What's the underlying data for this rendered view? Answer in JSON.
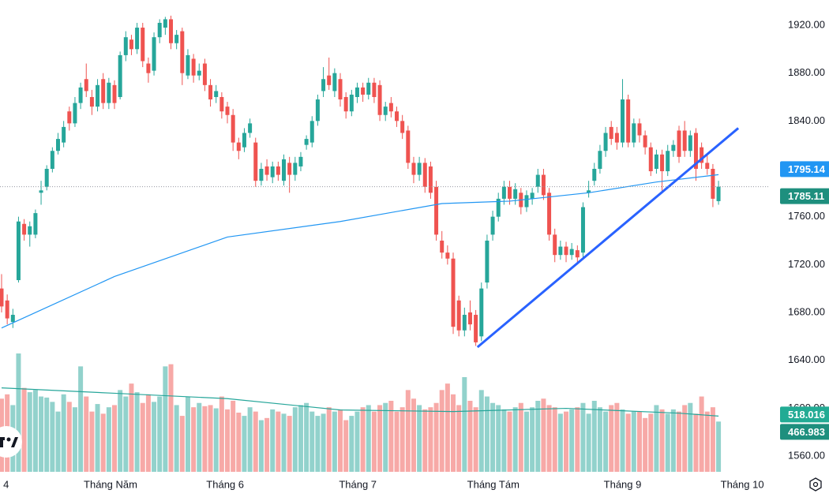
{
  "chart_data": {
    "type": "candlestick",
    "up_color": "#26a69a",
    "down_color": "#ef5350",
    "xlim": [
      -0.28,
      136.08
    ],
    "ylim": [
      1546.8,
      1941.1
    ],
    "yticks": [
      {
        "value": 1560,
        "label": "1560.00"
      },
      {
        "value": 1600,
        "label": "1600.00"
      },
      {
        "value": 1640,
        "label": "1640.00"
      },
      {
        "value": 1680,
        "label": "1680.00"
      },
      {
        "value": 1720,
        "label": "1720.00"
      },
      {
        "value": 1760,
        "label": "1760.00"
      },
      {
        "value": 1800,
        "label": "1800.00"
      },
      {
        "value": 1840,
        "label": "1840.00"
      },
      {
        "value": 1880,
        "label": "1880.00"
      },
      {
        "value": 1920,
        "label": "1920.00"
      }
    ],
    "xticks": [
      {
        "value": 0.8,
        "label": "4"
      },
      {
        "value": 19.3,
        "label": "Tháng Năm"
      },
      {
        "value": 39.6,
        "label": "Tháng 6"
      },
      {
        "value": 63.1,
        "label": "Tháng 7"
      },
      {
        "value": 87.1,
        "label": "Tháng Tám"
      },
      {
        "value": 110,
        "label": "Tháng 9"
      },
      {
        "value": 131.2,
        "label": "Tháng 10"
      }
    ],
    "candles": [
      [
        1700,
        1712,
        1680,
        1685
      ],
      [
        1690,
        1695,
        1670,
        1675
      ],
      [
        1672,
        1683,
        1667,
        1678
      ],
      [
        1707,
        1760,
        1705,
        1756
      ],
      [
        1754,
        1758,
        1740,
        1745
      ],
      [
        1745,
        1756,
        1735,
        1752
      ],
      [
        1745,
        1766,
        1742,
        1763
      ],
      [
        1780,
        1790,
        1770,
        1782
      ],
      [
        1785,
        1803,
        1782,
        1800
      ],
      [
        1800,
        1818,
        1797,
        1815
      ],
      [
        1815,
        1830,
        1812,
        1825
      ],
      [
        1822,
        1840,
        1818,
        1835
      ],
      [
        1848,
        1852,
        1832,
        1838
      ],
      [
        1838,
        1860,
        1835,
        1855
      ],
      [
        1855,
        1872,
        1850,
        1868
      ],
      [
        1875,
        1888,
        1860,
        1865
      ],
      [
        1860,
        1866,
        1845,
        1852
      ],
      [
        1852,
        1875,
        1848,
        1870
      ],
      [
        1875,
        1880,
        1850,
        1855
      ],
      [
        1855,
        1876,
        1850,
        1872
      ],
      [
        1870,
        1874,
        1850,
        1855
      ],
      [
        1860,
        1898,
        1858,
        1895
      ],
      [
        1895,
        1915,
        1890,
        1910
      ],
      [
        1908,
        1912,
        1895,
        1900
      ],
      [
        1900,
        1922,
        1896,
        1918
      ],
      [
        1918,
        1922,
        1885,
        1890
      ],
      [
        1888,
        1893,
        1872,
        1880
      ],
      [
        1882,
        1914,
        1878,
        1910
      ],
      [
        1910,
        1925,
        1905,
        1922
      ],
      [
        1918,
        1927,
        1912,
        1925
      ],
      [
        1925,
        1928,
        1900,
        1905
      ],
      [
        1905,
        1916,
        1900,
        1912
      ],
      [
        1915,
        1918,
        1870,
        1880
      ],
      [
        1878,
        1900,
        1875,
        1895
      ],
      [
        1892,
        1896,
        1872,
        1878
      ],
      [
        1878,
        1888,
        1874,
        1882
      ],
      [
        1888,
        1892,
        1865,
        1870
      ],
      [
        1870,
        1875,
        1852,
        1858
      ],
      [
        1860,
        1870,
        1855,
        1865
      ],
      [
        1860,
        1864,
        1842,
        1848
      ],
      [
        1852,
        1856,
        1838,
        1845
      ],
      [
        1845,
        1850,
        1815,
        1822
      ],
      [
        1822,
        1826,
        1808,
        1815
      ],
      [
        1818,
        1834,
        1814,
        1830
      ],
      [
        1830,
        1842,
        1826,
        1838
      ],
      [
        1822,
        1826,
        1785,
        1790
      ],
      [
        1790,
        1805,
        1786,
        1800
      ],
      [
        1802,
        1808,
        1790,
        1795
      ],
      [
        1793,
        1806,
        1788,
        1802
      ],
      [
        1802,
        1806,
        1790,
        1795
      ],
      [
        1790,
        1812,
        1786,
        1808
      ],
      [
        1805,
        1810,
        1780,
        1795
      ],
      [
        1795,
        1810,
        1790,
        1805
      ],
      [
        1802,
        1814,
        1798,
        1810
      ],
      [
        1820,
        1828,
        1816,
        1825
      ],
      [
        1822,
        1844,
        1818,
        1840
      ],
      [
        1840,
        1862,
        1836,
        1858
      ],
      [
        1865,
        1885,
        1860,
        1875
      ],
      [
        1878,
        1893,
        1866,
        1870
      ],
      [
        1865,
        1884,
        1860,
        1880
      ],
      [
        1875,
        1880,
        1852,
        1858
      ],
      [
        1860,
        1864,
        1842,
        1848
      ],
      [
        1848,
        1866,
        1844,
        1862
      ],
      [
        1860,
        1872,
        1855,
        1868
      ],
      [
        1868,
        1872,
        1856,
        1862
      ],
      [
        1862,
        1876,
        1858,
        1872
      ],
      [
        1872,
        1876,
        1855,
        1860
      ],
      [
        1870,
        1874,
        1840,
        1845
      ],
      [
        1845,
        1856,
        1840,
        1852
      ],
      [
        1855,
        1860,
        1843,
        1848
      ],
      [
        1848,
        1852,
        1835,
        1840
      ],
      [
        1840,
        1845,
        1825,
        1830
      ],
      [
        1832,
        1836,
        1800,
        1805
      ],
      [
        1805,
        1810,
        1788,
        1795
      ],
      [
        1795,
        1810,
        1790,
        1805
      ],
      [
        1805,
        1809,
        1780,
        1785
      ],
      [
        1802,
        1806,
        1775,
        1780
      ],
      [
        1785,
        1790,
        1740,
        1745
      ],
      [
        1740,
        1748,
        1725,
        1730
      ],
      [
        1730,
        1736,
        1720,
        1725
      ],
      [
        1725,
        1730,
        1662,
        1668
      ],
      [
        1690,
        1694,
        1660,
        1665
      ],
      [
        1665,
        1684,
        1660,
        1678
      ],
      [
        1680,
        1690,
        1665,
        1670
      ],
      [
        1678,
        1682,
        1652,
        1655
      ],
      [
        1660,
        1705,
        1656,
        1700
      ],
      [
        1705,
        1745,
        1700,
        1740
      ],
      [
        1745,
        1765,
        1740,
        1760
      ],
      [
        1760,
        1780,
        1756,
        1775
      ],
      [
        1775,
        1790,
        1770,
        1785
      ],
      [
        1785,
        1790,
        1770,
        1775
      ],
      [
        1775,
        1788,
        1770,
        1783
      ],
      [
        1780,
        1784,
        1762,
        1768
      ],
      [
        1768,
        1782,
        1764,
        1778
      ],
      [
        1775,
        1784,
        1770,
        1780
      ],
      [
        1785,
        1800,
        1780,
        1795
      ],
      [
        1795,
        1800,
        1774,
        1778
      ],
      [
        1780,
        1784,
        1740,
        1745
      ],
      [
        1745,
        1750,
        1722,
        1728
      ],
      [
        1728,
        1740,
        1724,
        1735
      ],
      [
        1735,
        1739,
        1722,
        1728
      ],
      [
        1728,
        1738,
        1724,
        1733
      ],
      [
        1732,
        1736,
        1720,
        1726
      ],
      [
        1730,
        1772,
        1726,
        1768
      ],
      [
        1780,
        1790,
        1776,
        1782
      ],
      [
        1790,
        1805,
        1786,
        1800
      ],
      [
        1800,
        1820,
        1796,
        1815
      ],
      [
        1815,
        1835,
        1810,
        1830
      ],
      [
        1835,
        1840,
        1820,
        1825
      ],
      [
        1830,
        1835,
        1816,
        1822
      ],
      [
        1822,
        1875,
        1818,
        1858
      ],
      [
        1858,
        1862,
        1818,
        1822
      ],
      [
        1822,
        1842,
        1818,
        1838
      ],
      [
        1838,
        1842,
        1822,
        1828
      ],
      [
        1828,
        1832,
        1812,
        1818
      ],
      [
        1818,
        1822,
        1794,
        1798
      ],
      [
        1800,
        1816,
        1796,
        1812
      ],
      [
        1812,
        1816,
        1780,
        1798
      ],
      [
        1798,
        1820,
        1794,
        1815
      ],
      [
        1815,
        1824,
        1810,
        1820
      ],
      [
        1832,
        1836,
        1805,
        1810
      ],
      [
        1832,
        1840,
        1810,
        1815
      ],
      [
        1815,
        1832,
        1810,
        1828
      ],
      [
        1830,
        1834,
        1790,
        1800
      ],
      [
        1818,
        1822,
        1800,
        1805
      ],
      [
        1805,
        1812,
        1795,
        1800
      ],
      [
        1800,
        1804,
        1768,
        1775
      ],
      [
        1773,
        1790,
        1770,
        1785.11
      ]
    ],
    "volumes": [
      680,
      720,
      620,
      1100,
      780,
      740,
      760,
      700,
      690,
      650,
      560,
      720,
      650,
      600,
      980,
      700,
      560,
      630,
      540,
      600,
      620,
      760,
      700,
      820,
      740,
      640,
      720,
      650,
      700,
      980,
      1000,
      620,
      520,
      700,
      600,
      640,
      610,
      620,
      590,
      700,
      580,
      660,
      550,
      520,
      600,
      560,
      480,
      500,
      580,
      560,
      540,
      520,
      600,
      620,
      640,
      560,
      520,
      540,
      600,
      560,
      580,
      480,
      520,
      560,
      600,
      620,
      560,
      620,
      640,
      660,
      560,
      600,
      760,
      680,
      620,
      580,
      600,
      640,
      760,
      820,
      720,
      620,
      880,
      660,
      600,
      760,
      700,
      640,
      620,
      580,
      560,
      600,
      640,
      560,
      600,
      660,
      680,
      620,
      600,
      540,
      560,
      580,
      600,
      640,
      540,
      660,
      600,
      560,
      620,
      640,
      580,
      540,
      560,
      560,
      500,
      540,
      620,
      580,
      540,
      580,
      560,
      620,
      640,
      540,
      700,
      560,
      600,
      466.983
    ],
    "price_ma": {
      "color": "#2196f3",
      "x": [
        0,
        20,
        40,
        60,
        78,
        90,
        104,
        116,
        127
      ],
      "values": [
        1667,
        1710,
        1743,
        1756,
        1771,
        1773,
        1780,
        1789,
        1795.14
      ]
    },
    "volume_ma": {
      "color": "#26a69a",
      "x": [
        0,
        20,
        40,
        60,
        80,
        100,
        120,
        127
      ],
      "values": [
        780,
        730,
        680,
        575,
        560,
        590,
        545,
        518.016
      ]
    },
    "trendline": {
      "color": "#2962ff",
      "x": [
        84.3,
        130.5
      ],
      "values": [
        1651,
        1834
      ]
    }
  }
}
